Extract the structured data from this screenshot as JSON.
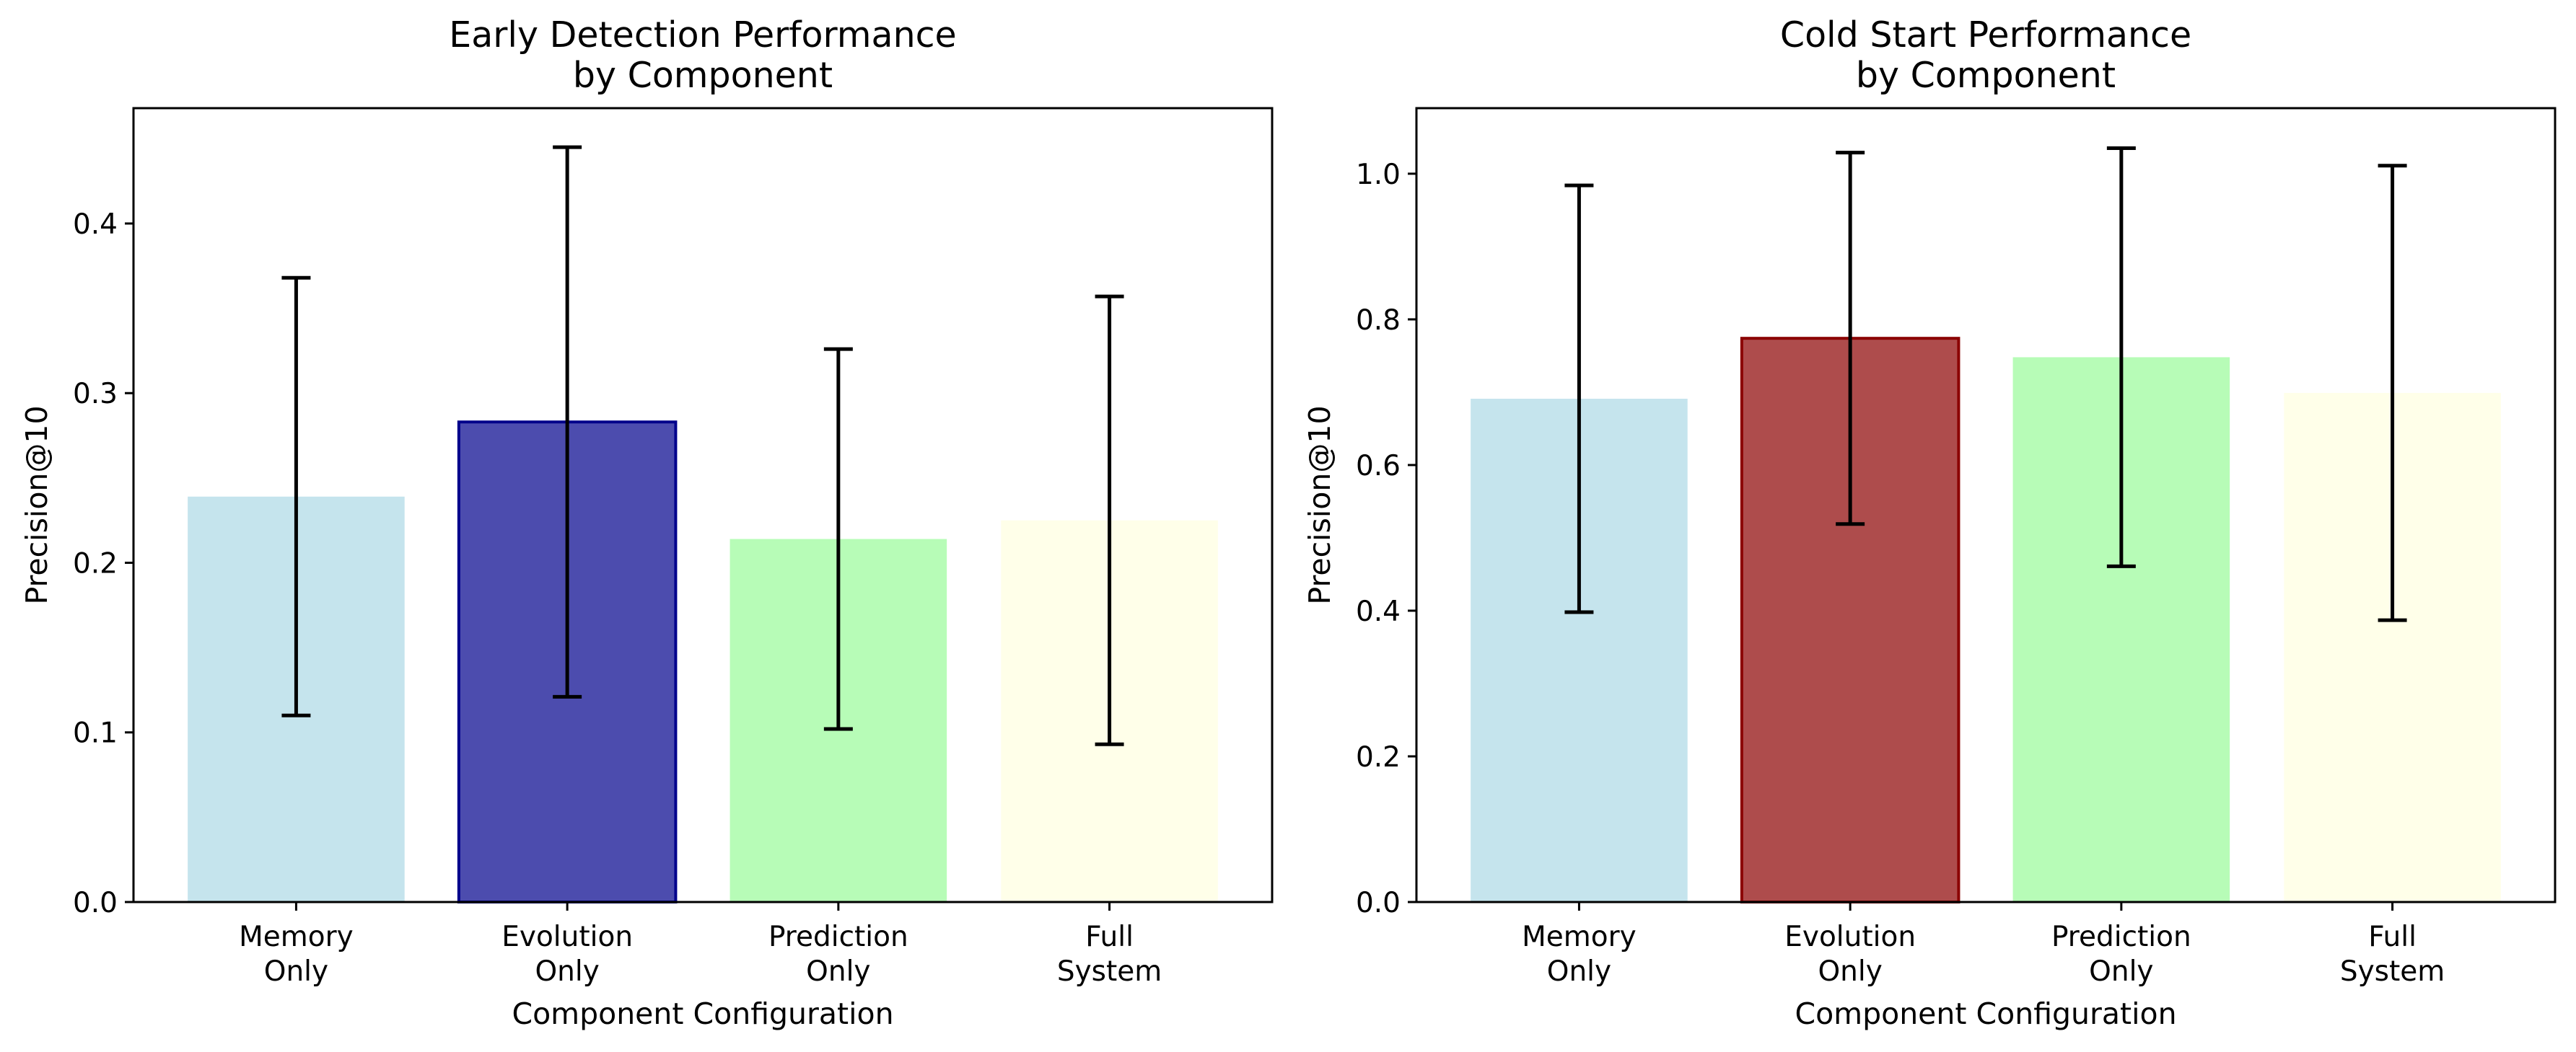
{
  "chart_data": [
    {
      "type": "bar",
      "title": [
        "Early Detection Performance",
        "by Component"
      ],
      "xlabel": "Component Configuration",
      "ylabel": "Precision@10",
      "categories": [
        [
          "Memory",
          "Only"
        ],
        [
          "Evolution",
          "Only"
        ],
        [
          "Prediction",
          "Only"
        ],
        [
          "Full",
          "System"
        ]
      ],
      "values": [
        0.239,
        0.283,
        0.214,
        0.225
      ],
      "errors": [
        0.129,
        0.162,
        0.112,
        0.132
      ],
      "colors": [
        "#add8e6",
        "#00008b",
        "#98fb98",
        "#ffffe0"
      ],
      "edge_colors": [
        "none",
        "#00008b",
        "none",
        "none"
      ],
      "bar_opacity": 0.7,
      "yticks": [
        "0.0",
        "0.1",
        "0.2",
        "0.3",
        "0.4"
      ],
      "ylim": [
        0,
        0.468
      ],
      "grid": false
    },
    {
      "type": "bar",
      "title": [
        "Cold Start Performance",
        "by Component"
      ],
      "xlabel": "Component Configuration",
      "ylabel": "Precision@10",
      "categories": [
        [
          "Memory",
          "Only"
        ],
        [
          "Evolution",
          "Only"
        ],
        [
          "Prediction",
          "Only"
        ],
        [
          "Full",
          "System"
        ]
      ],
      "values": [
        0.691,
        0.774,
        0.748,
        0.699
      ],
      "errors": [
        0.293,
        0.255,
        0.287,
        0.312
      ],
      "colors": [
        "#add8e6",
        "#8b0000",
        "#98fb98",
        "#ffffe0"
      ],
      "edge_colors": [
        "none",
        "#8b0000",
        "none",
        "none"
      ],
      "bar_opacity": 0.7,
      "yticks": [
        "0.0",
        "0.2",
        "0.4",
        "0.6",
        "0.8",
        "1.0"
      ],
      "ylim": [
        0,
        1.09
      ],
      "grid": false
    }
  ]
}
